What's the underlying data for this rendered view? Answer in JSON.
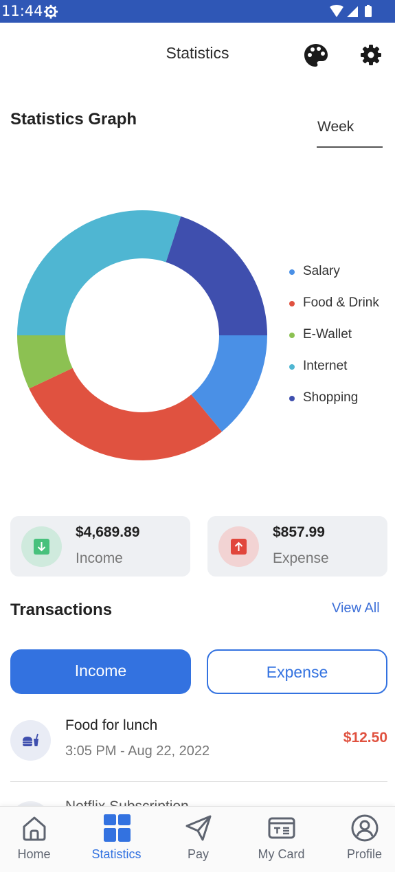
{
  "status_bar": {
    "time": "11:44"
  },
  "header": {
    "title": "Statistics"
  },
  "graph": {
    "title": "Statistics Graph",
    "period": "Week"
  },
  "chart_data": {
    "type": "pie",
    "categories": [
      "Salary",
      "Food & Drink",
      "E-Wallet",
      "Internet",
      "Shopping"
    ],
    "values": [
      14,
      29,
      7,
      30,
      20
    ],
    "colors": [
      "#4a90e6",
      "#e05240",
      "#8cc152",
      "#4fb6d2",
      "#3f4fae"
    ]
  },
  "income_card": {
    "amount": "$4,689.89",
    "label": "Income"
  },
  "expense_card": {
    "amount": "$857.99",
    "label": "Expense"
  },
  "transactions": {
    "title": "Transactions",
    "view_all": "View All",
    "tabs": {
      "income": "Income",
      "expense": "Expense"
    },
    "items": [
      {
        "name": "Food for lunch",
        "time": "3:05 PM - Aug 22, 2022",
        "amount": "$12.50"
      },
      {
        "name": "Netflix Subscription"
      }
    ]
  },
  "nav": {
    "items": [
      {
        "label": "Home"
      },
      {
        "label": "Statistics"
      },
      {
        "label": "Pay"
      },
      {
        "label": "My Card"
      },
      {
        "label": "Profile"
      }
    ]
  }
}
